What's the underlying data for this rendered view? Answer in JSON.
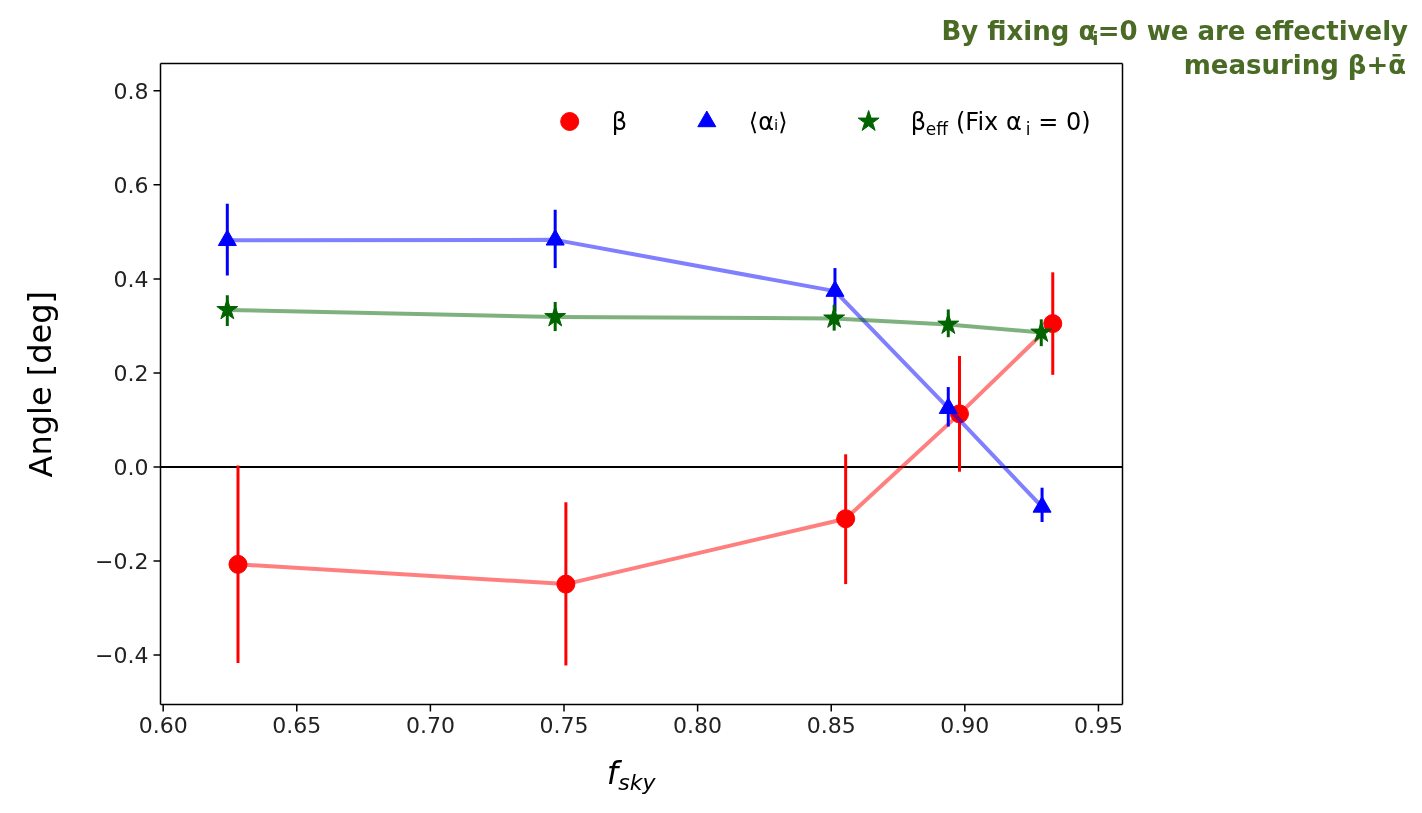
{
  "chart_data": {
    "type": "line",
    "xlabel": "f$_{sky}$",
    "ylabel": "Angle [deg]",
    "series": [
      {
        "name": "β",
        "color": "#ff0000",
        "marker": "circle",
        "x": [
          0.628,
          0.7507,
          0.8554,
          0.898,
          0.9329
        ],
        "values": [
          -0.207,
          -0.249,
          -0.11,
          0.113,
          0.305
        ],
        "errors": [
          [
            -0.417,
            0.003
          ],
          [
            -0.422,
            -0.075
          ],
          [
            -0.249,
            0.027
          ],
          [
            -0.01,
            0.236
          ],
          [
            0.196,
            0.414
          ]
        ]
      },
      {
        "name": "⟨αᵢ⟩",
        "color": "#0000ff",
        "marker": "triangle",
        "x": [
          0.624,
          0.7467,
          0.8514,
          0.8938,
          0.9289
        ],
        "values": [
          0.482,
          0.483,
          0.374,
          0.125,
          -0.085
        ],
        "errors": [
          [
            0.407,
            0.56
          ],
          [
            0.423,
            0.547
          ],
          [
            0.33,
            0.423
          ],
          [
            0.086,
            0.17
          ],
          [
            -0.117,
            -0.044
          ]
        ]
      },
      {
        "name": "β$_{eff}$ (Fix α$_{i}$ = 0)",
        "color": "#006400",
        "marker": "star",
        "x": [
          0.624,
          0.7467,
          0.8511,
          0.8938,
          0.9286
        ],
        "values": [
          0.334,
          0.319,
          0.316,
          0.303,
          0.286
        ],
        "errors": [
          [
            0.3,
            0.365
          ],
          [
            0.289,
            0.351
          ],
          [
            0.29,
            0.345
          ],
          [
            0.276,
            0.335
          ],
          [
            0.257,
            0.314
          ]
        ]
      }
    ],
    "xlim": [
      0.599,
      0.959
    ],
    "ylim": [
      -0.505,
      0.858
    ],
    "xticks": [
      {
        "value": 0.6,
        "label": "0.60"
      },
      {
        "value": 0.65,
        "label": "0.65"
      },
      {
        "value": 0.7,
        "label": "0.70"
      },
      {
        "value": 0.75,
        "label": "0.75"
      },
      {
        "value": 0.8,
        "label": "0.80"
      },
      {
        "value": 0.85,
        "label": "0.85"
      },
      {
        "value": 0.9,
        "label": "0.90"
      },
      {
        "value": 0.95,
        "label": "0.95"
      }
    ],
    "yticks": [
      {
        "value": -0.4,
        "label": "−0.4"
      },
      {
        "value": -0.2,
        "label": "−0.2"
      },
      {
        "value": 0.0,
        "label": "0.0"
      },
      {
        "value": 0.2,
        "label": "0.2"
      },
      {
        "value": 0.4,
        "label": "0.4"
      },
      {
        "value": 0.6,
        "label": "0.6"
      },
      {
        "value": 0.8,
        "label": "0.8"
      }
    ],
    "ref_lines": [
      {
        "axis": "y",
        "value": 0,
        "color": "#000000"
      }
    ],
    "annotations": [
      "By fixing α$_{i}$=0 we are effectively",
      "measuring β+ᾱ"
    ],
    "legend": "top right",
    "grid": false,
    "line_style": "solid"
  }
}
